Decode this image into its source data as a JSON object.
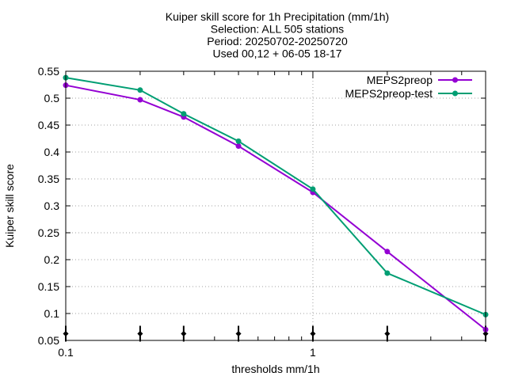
{
  "chart_data": {
    "type": "line",
    "title_lines": [
      "Kuiper skill score  for 1h Precipitation (mm/1h)",
      "Selection: ALL    505 stations",
      "Period: 20250702-20250720",
      "Used 00,12 + 06-05 18-17"
    ],
    "xlabel": "thresholds mm/1h",
    "ylabel": "Kuiper skill score",
    "xscale": "log",
    "xlim": [
      0.1,
      5
    ],
    "ylim": [
      0.05,
      0.55
    ],
    "x_tick_labels": [
      {
        "value": 0.1,
        "label": "0.1"
      },
      {
        "value": 1,
        "label": "1"
      }
    ],
    "y_ticks": [
      {
        "value": 0.05,
        "label": "0.05"
      },
      {
        "value": 0.1,
        "label": "0.1"
      },
      {
        "value": 0.15,
        "label": "0.15"
      },
      {
        "value": 0.2,
        "label": "0.2"
      },
      {
        "value": 0.25,
        "label": "0.25"
      },
      {
        "value": 0.3,
        "label": "0.3"
      },
      {
        "value": 0.35,
        "label": "0.35"
      },
      {
        "value": 0.4,
        "label": "0.4"
      },
      {
        "value": 0.45,
        "label": "0.45"
      },
      {
        "value": 0.5,
        "label": "0.5"
      },
      {
        "value": 0.55,
        "label": "0.55"
      }
    ],
    "grid": true,
    "legend_position": "top-right",
    "x": [
      0.1,
      0.2,
      0.3,
      0.5,
      1,
      2,
      5
    ],
    "series": [
      {
        "name": "MEPS2preop",
        "color": "#9400d3",
        "values": [
          0.524,
          0.497,
          0.465,
          0.411,
          0.325,
          0.215,
          0.07
        ]
      },
      {
        "name": "MEPS2preop-test",
        "color": "#009e73",
        "values": [
          0.538,
          0.515,
          0.471,
          0.42,
          0.331,
          0.175,
          0.098
        ]
      }
    ],
    "marker_style": "diamond-line",
    "marker_color": "#000000"
  }
}
